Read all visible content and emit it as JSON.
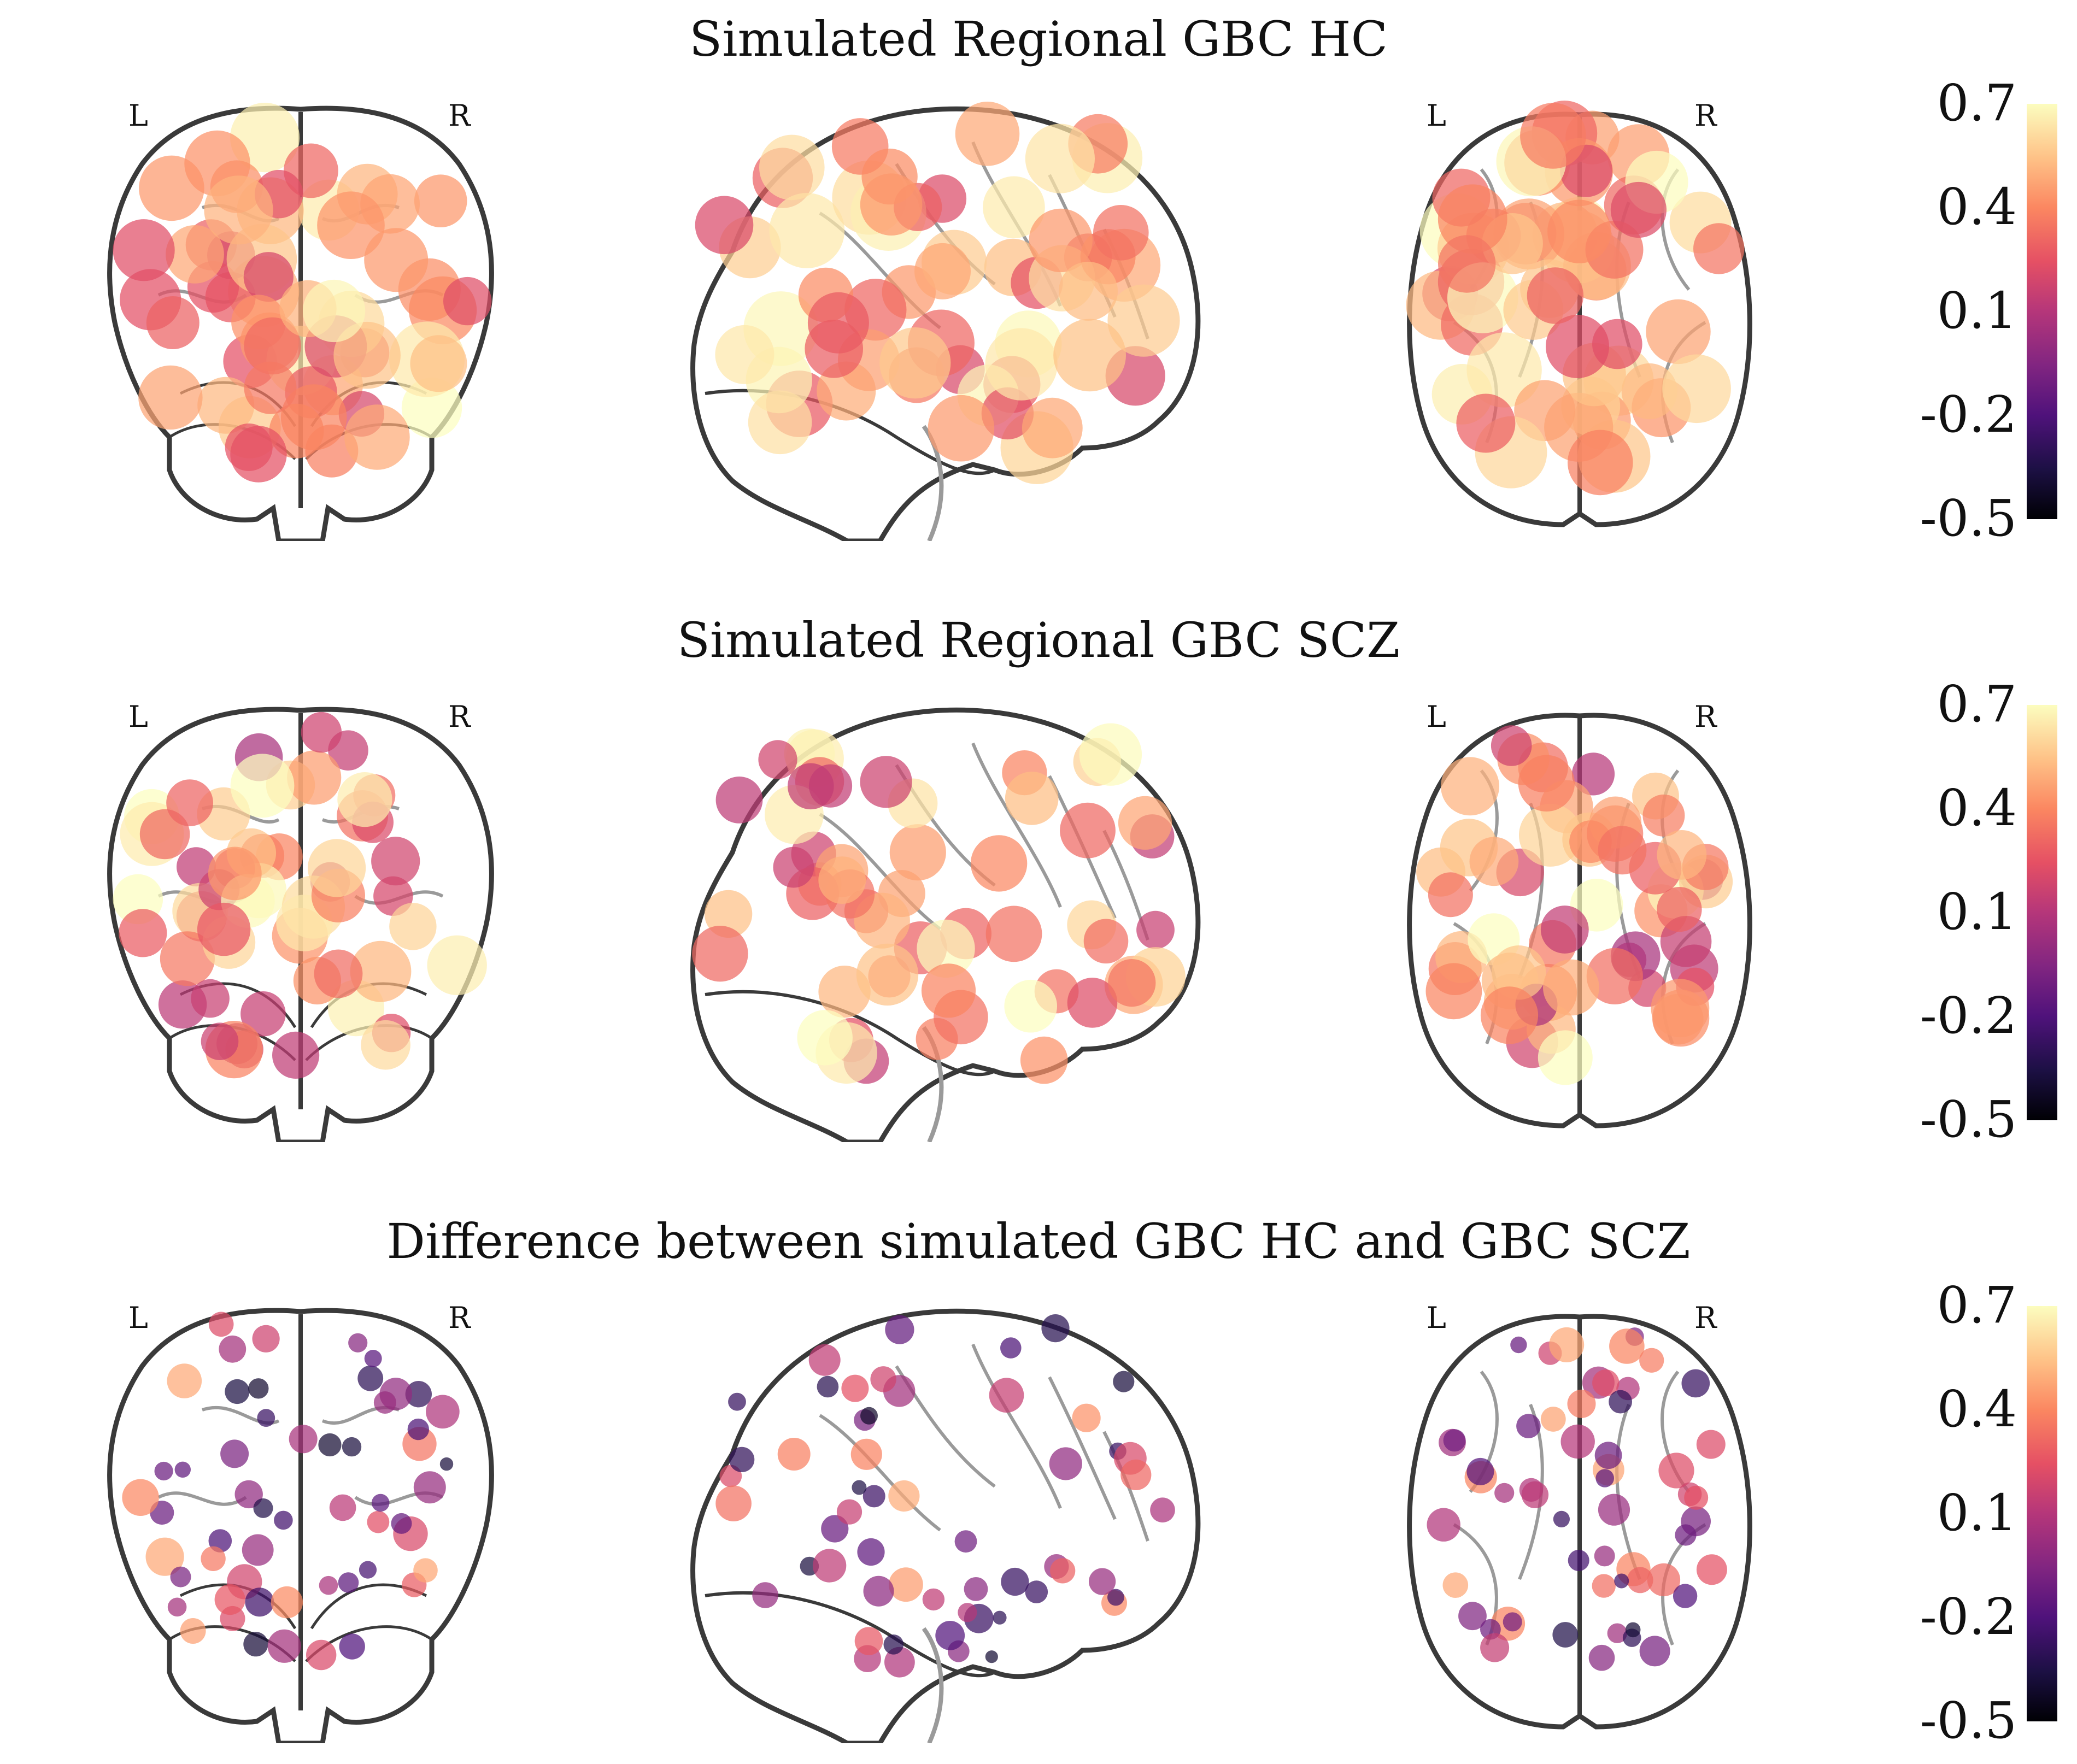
{
  "titles": {
    "row1": "Simulated Regional GBC HC",
    "row2": "Simulated Regional GBC SCZ",
    "row3": "Difference between simulated GBC HC and GBC SCZ"
  },
  "hemisphere": {
    "left": "L",
    "right": "R"
  },
  "colorbar": {
    "colormap": "magma",
    "min": -0.5,
    "max": 0.7,
    "ticks": [
      "0.7",
      "0.4",
      "0.1",
      "-0.2",
      "-0.5"
    ]
  },
  "views": [
    "coronal",
    "sagittal",
    "axial"
  ],
  "colors": {
    "outline": "#3a3a3a",
    "inner_lines": "#9a9a9a"
  }
}
